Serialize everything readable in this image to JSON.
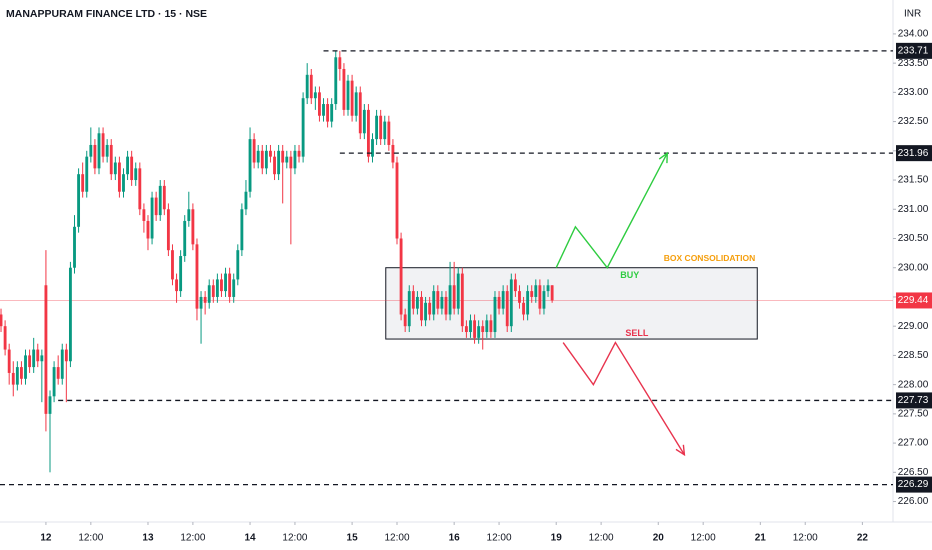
{
  "chart_data": {
    "type": "candlestick",
    "title": "MANAPPURAM FINANCE LTD · 15 · NSE",
    "currency": "INR",
    "up_color": "#089981",
    "down_color": "#f23645",
    "xlim": [
      -11.25,
      207.5
    ],
    "ylim": [
      225.65,
      234.58
    ],
    "xticks": [
      {
        "value": 0,
        "label": "12"
      },
      {
        "value": 11,
        "label": "12:00"
      },
      {
        "value": 25,
        "label": "13"
      },
      {
        "value": 36,
        "label": "12:00"
      },
      {
        "value": 50,
        "label": "14"
      },
      {
        "value": 61,
        "label": "12:00"
      },
      {
        "value": 75,
        "label": "15"
      },
      {
        "value": 86,
        "label": "12:00"
      },
      {
        "value": 100,
        "label": "16"
      },
      {
        "value": 111,
        "label": "12:00"
      },
      {
        "value": 125,
        "label": "19"
      },
      {
        "value": 136,
        "label": "12:00"
      },
      {
        "value": 150,
        "label": "20"
      },
      {
        "value": 161,
        "label": "12:00"
      },
      {
        "value": 175,
        "label": "21"
      },
      {
        "value": 186,
        "label": "12:00"
      },
      {
        "value": 200,
        "label": "22"
      }
    ],
    "yticks": [
      {
        "value": 226,
        "label": "226.00"
      },
      {
        "value": 226.5,
        "label": "226.50"
      },
      {
        "value": 227,
        "label": "227.00"
      },
      {
        "value": 227.5,
        "label": "227.50"
      },
      {
        "value": 228,
        "label": "228.00"
      },
      {
        "value": 228.5,
        "label": "228.50"
      },
      {
        "value": 229,
        "label": "229.00"
      },
      {
        "value": 229.5,
        "label": "229.50"
      },
      {
        "value": 230,
        "label": "230.00"
      },
      {
        "value": 230.5,
        "label": "230.50"
      },
      {
        "value": 231,
        "label": "231.00"
      },
      {
        "value": 231.5,
        "label": "231.50"
      },
      {
        "value": 232,
        "label": "232.00"
      },
      {
        "value": 232.5,
        "label": "232.50"
      },
      {
        "value": 233,
        "label": "233.00"
      },
      {
        "value": 233.5,
        "label": "233.50"
      },
      {
        "value": 234,
        "label": "234.00"
      }
    ],
    "x": [
      -11,
      -10,
      -9,
      -8,
      -7,
      -6,
      -5,
      -4,
      -3,
      -2,
      -1,
      0,
      1,
      2,
      3,
      4,
      5,
      6,
      7,
      8,
      9,
      10,
      11,
      12,
      13,
      14,
      15,
      16,
      17,
      18,
      19,
      20,
      21,
      22,
      23,
      24,
      25,
      26,
      27,
      28,
      29,
      30,
      31,
      32,
      33,
      34,
      35,
      36,
      37,
      38,
      39,
      40,
      41,
      42,
      43,
      44,
      45,
      46,
      47,
      48,
      49,
      50,
      51,
      52,
      53,
      54,
      55,
      56,
      57,
      58,
      59,
      60,
      61,
      62,
      63,
      64,
      65,
      66,
      67,
      68,
      69,
      70,
      71,
      72,
      73,
      74,
      75,
      76,
      77,
      78,
      79,
      80,
      81,
      82,
      83,
      84,
      85,
      86,
      87,
      88,
      89,
      90,
      91,
      92,
      93,
      94,
      95,
      96,
      97,
      98,
      99,
      100,
      101,
      102,
      103,
      104,
      105,
      106,
      107,
      108,
      109,
      110,
      111,
      112,
      113,
      114,
      115,
      116,
      117,
      118,
      119,
      120,
      121,
      122,
      123,
      124
    ],
    "open": [
      229.2,
      229.0,
      228.6,
      228.2,
      228.0,
      228.3,
      228.1,
      228.5,
      228.3,
      228.6,
      228.4,
      229.7,
      227.5,
      227.8,
      228.3,
      228.1,
      228.6,
      228.4,
      230.0,
      230.7,
      231.6,
      231.3,
      231.9,
      232.1,
      231.7,
      232.3,
      231.9,
      232.1,
      231.6,
      231.8,
      231.3,
      231.6,
      231.9,
      231.5,
      231.7,
      231.0,
      230.8,
      230.5,
      231.2,
      230.9,
      231.4,
      231.0,
      230.3,
      229.8,
      229.6,
      230.2,
      230.8,
      231.0,
      230.4,
      229.3,
      229.5,
      229.4,
      229.7,
      229.5,
      229.8,
      229.6,
      229.9,
      229.5,
      229.8,
      230.3,
      231.0,
      231.3,
      232.2,
      231.8,
      232.0,
      231.7,
      232.0,
      231.9,
      231.6,
      232.0,
      231.8,
      231.9,
      231.7,
      232.0,
      231.9,
      232.9,
      233.3,
      232.9,
      233.0,
      232.6,
      232.8,
      232.5,
      232.8,
      233.6,
      233.4,
      232.7,
      233.2,
      232.6,
      233.0,
      232.3,
      232.7,
      231.9,
      232.2,
      232.6,
      232.2,
      232.5,
      232.1,
      231.8,
      230.5,
      229.2,
      229.0,
      229.6,
      229.3,
      229.5,
      229.1,
      229.4,
      229.2,
      229.6,
      229.3,
      229.5,
      229.2,
      229.7,
      229.3,
      229.9,
      229.0,
      228.9,
      229.1,
      228.8,
      229.0,
      228.9,
      229.1,
      228.9,
      229.5,
      229.3,
      229.6,
      229.0,
      229.8,
      229.6,
      229.4,
      229.2,
      229.6,
      229.5,
      229.7,
      229.3,
      229.6,
      229.7
    ],
    "high": [
      229.3,
      229.1,
      228.7,
      228.4,
      228.4,
      228.4,
      228.6,
      228.6,
      228.8,
      228.7,
      228.6,
      230.3,
      227.9,
      228.4,
      228.5,
      228.7,
      228.7,
      230.1,
      230.9,
      231.7,
      231.8,
      232.0,
      232.4,
      232.2,
      232.4,
      232.4,
      232.2,
      232.2,
      231.9,
      231.9,
      231.7,
      232.0,
      232.0,
      231.8,
      231.8,
      231.1,
      230.9,
      231.3,
      231.3,
      231.5,
      231.5,
      231.1,
      230.4,
      229.9,
      230.3,
      230.9,
      231.3,
      231.1,
      230.5,
      229.6,
      229.6,
      229.8,
      229.8,
      229.9,
      229.9,
      230.0,
      230.0,
      229.9,
      230.4,
      231.1,
      231.5,
      232.4,
      232.3,
      232.1,
      232.1,
      232.1,
      232.1,
      232.0,
      232.1,
      232.1,
      232.0,
      232.0,
      232.1,
      232.1,
      233.0,
      233.5,
      233.4,
      233.1,
      233.1,
      232.9,
      232.9,
      232.9,
      233.7,
      233.71,
      233.5,
      233.3,
      233.3,
      233.1,
      233.1,
      232.8,
      232.8,
      232.3,
      232.7,
      232.7,
      232.6,
      232.6,
      232.2,
      231.9,
      230.6,
      229.3,
      229.7,
      229.7,
      229.6,
      229.6,
      229.5,
      229.5,
      229.7,
      229.7,
      229.6,
      229.6,
      230.1,
      230.1,
      230.0,
      230.0,
      229.1,
      229.2,
      229.2,
      229.1,
      229.1,
      229.2,
      229.2,
      229.6,
      229.6,
      229.7,
      229.7,
      229.9,
      229.9,
      229.7,
      229.5,
      229.7,
      229.7,
      229.8,
      229.8,
      229.7,
      229.8,
      229.7
    ],
    "low": [
      228.9,
      228.5,
      228.0,
      227.8,
      227.9,
      228.0,
      228.0,
      228.2,
      228.2,
      228.3,
      227.7,
      227.2,
      226.5,
      227.7,
      228.0,
      228.0,
      227.7,
      228.3,
      229.9,
      230.6,
      231.2,
      231.2,
      231.8,
      231.6,
      231.6,
      231.8,
      231.8,
      231.5,
      231.5,
      231.2,
      231.2,
      231.5,
      231.4,
      231.4,
      230.9,
      230.6,
      230.3,
      230.4,
      230.8,
      230.8,
      230.9,
      230.2,
      229.7,
      229.4,
      229.5,
      230.1,
      230.7,
      230.3,
      229.1,
      228.7,
      229.2,
      229.3,
      229.4,
      229.4,
      229.5,
      229.5,
      229.4,
      229.4,
      229.7,
      230.2,
      230.9,
      231.2,
      231.7,
      231.7,
      231.6,
      231.6,
      231.8,
      231.5,
      231.5,
      231.1,
      231.7,
      230.4,
      231.6,
      231.8,
      231.8,
      232.8,
      232.8,
      232.7,
      232.5,
      232.5,
      232.4,
      232.4,
      232.7,
      233.2,
      232.6,
      232.6,
      232.5,
      232.5,
      232.2,
      232.2,
      231.8,
      231.8,
      232.1,
      232.1,
      232.1,
      232.0,
      231.7,
      230.4,
      229.1,
      228.9,
      228.9,
      229.2,
      229.2,
      229.0,
      229.0,
      229.1,
      229.1,
      229.2,
      229.2,
      229.1,
      229.1,
      229.2,
      229.2,
      228.9,
      228.8,
      228.8,
      228.7,
      228.7,
      228.6,
      228.8,
      228.8,
      228.8,
      229.2,
      229.2,
      228.9,
      228.9,
      229.5,
      229.3,
      229.1,
      229.1,
      229.4,
      229.4,
      229.2,
      229.2,
      229.5,
      229.4
    ],
    "close": [
      229.0,
      228.6,
      228.2,
      228.0,
      228.3,
      228.1,
      228.5,
      228.3,
      228.6,
      228.4,
      228.5,
      227.5,
      227.8,
      228.3,
      228.1,
      228.6,
      228.4,
      230.0,
      230.7,
      231.6,
      231.3,
      231.9,
      232.1,
      231.7,
      232.3,
      231.9,
      232.1,
      231.6,
      231.8,
      231.3,
      231.6,
      231.9,
      231.5,
      231.7,
      231.0,
      230.8,
      230.5,
      231.2,
      230.9,
      231.4,
      231.0,
      230.3,
      229.8,
      229.6,
      230.2,
      230.8,
      231.0,
      230.4,
      229.3,
      229.5,
      229.4,
      229.7,
      229.5,
      229.8,
      229.6,
      229.9,
      229.5,
      229.8,
      230.3,
      231.0,
      231.3,
      232.2,
      231.8,
      232.0,
      231.7,
      232.0,
      231.9,
      231.6,
      232.0,
      231.8,
      231.9,
      231.7,
      232.0,
      231.9,
      232.9,
      233.3,
      232.9,
      233.0,
      232.6,
      232.8,
      232.5,
      232.8,
      233.6,
      233.4,
      232.7,
      233.2,
      232.6,
      233.0,
      232.3,
      232.7,
      231.9,
      232.2,
      232.6,
      232.2,
      232.5,
      232.1,
      231.8,
      230.5,
      229.2,
      229.0,
      229.6,
      229.3,
      229.5,
      229.1,
      229.4,
      229.2,
      229.6,
      229.3,
      229.5,
      229.2,
      229.7,
      229.3,
      229.9,
      229.0,
      228.9,
      229.1,
      228.8,
      229.0,
      228.9,
      229.1,
      228.9,
      229.5,
      229.3,
      229.6,
      229.0,
      229.8,
      229.6,
      229.4,
      229.2,
      229.6,
      229.5,
      229.7,
      229.3,
      229.6,
      229.7,
      229.44
    ],
    "last_price": {
      "value": 229.44,
      "label": "229.44"
    },
    "levels": [
      {
        "value": 233.71,
        "label": "233.71",
        "start": 68
      },
      {
        "value": 231.96,
        "label": "231.96",
        "start": 72
      },
      {
        "value": 227.73,
        "label": "227.73",
        "start": 3
      },
      {
        "value": 226.29,
        "label": "226.29"
      }
    ],
    "box": {
      "label": "BOX CONSOLIDATION",
      "x": [
        83.25,
        174.25
      ],
      "y": [
        230.0,
        228.78
      ],
      "color": "#f59e0b"
    },
    "paths": [
      {
        "label": "BUY",
        "color": "#2ecc40",
        "x": [
          125,
          129.7,
          137.5,
          152.2
        ],
        "y": [
          230.0,
          230.7,
          230.0,
          231.96
        ]
      },
      {
        "label": "SELL",
        "color": "#e8344e",
        "x": [
          126.7,
          134.1,
          139.5,
          156.4
        ],
        "y": [
          228.72,
          228.0,
          228.72,
          226.8
        ]
      }
    ]
  }
}
